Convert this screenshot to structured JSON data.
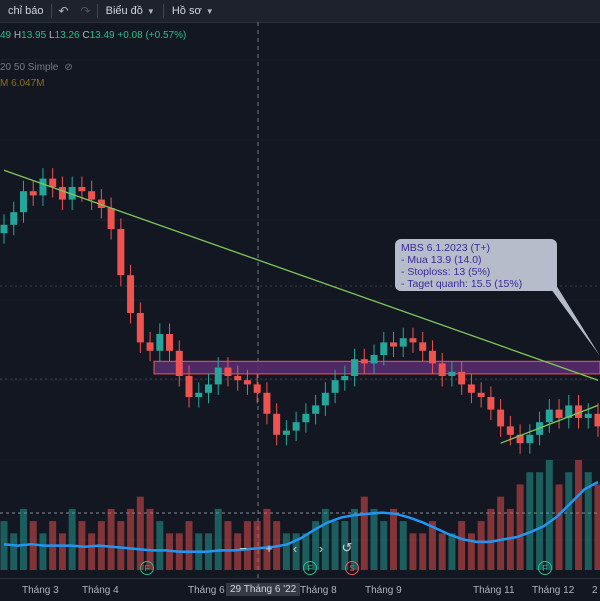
{
  "toolbar": {
    "indicators_label": "chỉ báo",
    "undo_icon": "undo-icon",
    "redo_icon": "redo-icon",
    "chart_label": "Biểu đồ",
    "profile_label": "Hồ sơ"
  },
  "ohlc": {
    "o_value": "49",
    "h_label": "H",
    "h_value": "13.95",
    "l_label": "L",
    "l_value": "13.26",
    "c_label": "C",
    "c_value": "13.49",
    "change": "+0.08 (+0.57%)"
  },
  "indicators": {
    "ma_label": "20 50 Simple",
    "volume_label": "M",
    "volume_value": "6.047M"
  },
  "annotation": {
    "title": "MBS 6.1.2023 (T+)",
    "line1": "- Mua 13.9 (14.0)",
    "line2": "- Stoploss: 13 (5%)",
    "line3": "- Taget quanh: 15.5 (15%)"
  },
  "time_axis": {
    "labels": [
      "Tháng 3",
      "Tháng 4",
      "Tháng 6",
      "Tháng 8",
      "Tháng 9",
      "Tháng 11",
      "Tháng 12",
      "2"
    ],
    "cursor_label": "29 Tháng 6 '22"
  },
  "events": [
    "F",
    "F",
    "F",
    "S",
    "F",
    "F"
  ],
  "colors": {
    "up": "#26a69a",
    "down": "#ef5350",
    "trendline": "#7ec85a",
    "zone_fill": "#5b2d6e",
    "zone_border": "#f7525f",
    "volume_ma": "#2196f3",
    "callout_bg": "#b6bcc9",
    "callout_text": "#3d2a9a"
  },
  "chart_data": {
    "type": "candlestick",
    "close": [
      13.6,
      13.9,
      14.4,
      14.3,
      14.7,
      14.5,
      14.2,
      14.5,
      14.4,
      14.2,
      14.0,
      13.5,
      12.4,
      11.5,
      10.8,
      10.6,
      11.0,
      10.6,
      10.0,
      9.5,
      9.6,
      9.8,
      10.2,
      10.0,
      9.9,
      9.8,
      9.6,
      9.1,
      8.6,
      8.7,
      8.9,
      9.1,
      9.3,
      9.6,
      9.9,
      10.0,
      10.4,
      10.3,
      10.5,
      10.8,
      10.7,
      10.9,
      10.8,
      10.6,
      10.3,
      10.0,
      10.1,
      9.8,
      9.6,
      9.5,
      9.2,
      8.8,
      8.6,
      8.4,
      8.6,
      8.9,
      9.2,
      9.0,
      9.3,
      9.0,
      9.1,
      8.8
    ],
    "volume": [
      4,
      3,
      5,
      4,
      3,
      4,
      3,
      5,
      4,
      3,
      4,
      5,
      4,
      5,
      6,
      5,
      4,
      3,
      3,
      4,
      3,
      3,
      5,
      4,
      3,
      4,
      4,
      5,
      4,
      3,
      3,
      3,
      4,
      5,
      4,
      4,
      5,
      6,
      5,
      4,
      5,
      4,
      3,
      3,
      4,
      3,
      3,
      4,
      3,
      4,
      5,
      6,
      5,
      7,
      8,
      8,
      9,
      7,
      8,
      9,
      8,
      7
    ],
    "volume_ma": [
      2.1,
      2.0,
      2.1,
      2.0,
      2.0,
      2.0,
      1.9,
      2.0,
      1.9,
      1.8,
      1.7,
      1.6,
      1.6,
      1.5,
      1.5,
      1.5,
      1.6,
      1.6,
      1.7,
      1.8,
      1.9,
      2.1,
      2.6,
      3.3,
      3.9,
      4.3,
      4.5,
      4.6,
      4.7,
      4.6,
      4.3,
      3.9,
      3.4,
      2.9,
      2.5,
      2.3,
      2.3,
      2.5,
      2.7,
      3.1,
      3.6,
      4.4,
      5.5,
      6.6,
      7.2
    ],
    "resistance_zone": [
      10.05,
      10.35
    ],
    "trendline_down": [
      [
        0,
        14.9
      ],
      [
        61,
        9.9
      ]
    ],
    "trendline_up": [
      [
        51,
        8.4
      ],
      [
        61,
        9.3
      ]
    ]
  }
}
